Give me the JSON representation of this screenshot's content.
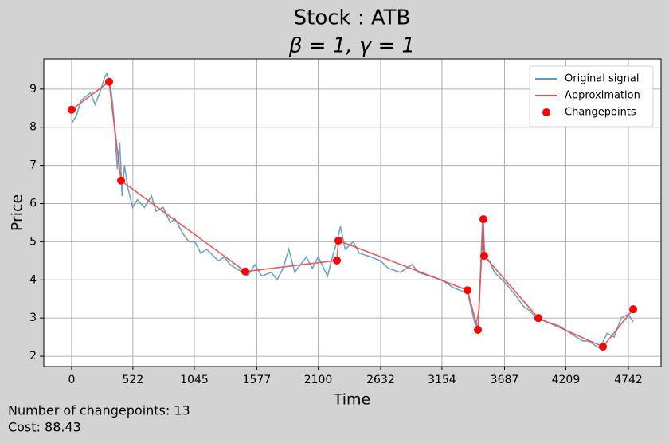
{
  "chart_data": {
    "type": "line",
    "title": "Stock : ATB",
    "subtitle": "β = 1, γ = 1",
    "xlabel": "Time",
    "ylabel": "Price",
    "annotations": [
      "Number of changepoints: 13",
      "Cost: 88.43"
    ],
    "xlim": [
      -237,
      5020
    ],
    "ylim": [
      1.73,
      9.79
    ],
    "xticks": [
      0,
      522,
      1045,
      1577,
      2100,
      2632,
      3154,
      3687,
      4209,
      4742
    ],
    "yticks": [
      2,
      3,
      4,
      5,
      6,
      7,
      8,
      9
    ],
    "grid": true,
    "legend": "upper right",
    "series": [
      {
        "name": "Original signal",
        "kind": "line",
        "color": "#5b9bc8",
        "x": [
          0,
          40,
          80,
          120,
          160,
          200,
          240,
          280,
          300,
          330,
          350,
          370,
          390,
          410,
          430,
          450,
          480,
          520,
          560,
          620,
          680,
          720,
          780,
          840,
          880,
          950,
          1000,
          1050,
          1100,
          1150,
          1250,
          1300,
          1350,
          1400,
          1460,
          1500,
          1560,
          1620,
          1700,
          1750,
          1800,
          1850,
          1900,
          1950,
          2000,
          2050,
          2100,
          2180,
          2230,
          2260,
          2290,
          2330,
          2400,
          2450,
          2550,
          2630,
          2700,
          2800,
          2900,
          2950,
          3050,
          3150,
          3250,
          3330,
          3370,
          3400,
          3440,
          3470,
          3500,
          3520,
          3560,
          3600,
          3700,
          3780,
          3850,
          3900,
          3960,
          4050,
          4150,
          4250,
          4350,
          4400,
          4450,
          4500,
          4560,
          4620,
          4680,
          4740,
          4783
        ],
        "values": [
          8.1,
          8.3,
          8.7,
          8.8,
          8.9,
          8.6,
          8.9,
          9.3,
          9.4,
          9.1,
          8.6,
          7.8,
          6.9,
          7.6,
          6.2,
          7.0,
          6.4,
          5.9,
          6.1,
          5.9,
          6.2,
          5.8,
          5.9,
          5.5,
          5.6,
          5.2,
          5.0,
          5.0,
          4.7,
          4.8,
          4.5,
          4.6,
          4.4,
          4.3,
          4.2,
          4.1,
          4.4,
          4.1,
          4.2,
          4.0,
          4.3,
          4.8,
          4.2,
          4.4,
          4.6,
          4.3,
          4.6,
          4.1,
          4.7,
          5.0,
          5.4,
          4.8,
          5.0,
          4.7,
          4.6,
          4.5,
          4.3,
          4.2,
          4.4,
          4.2,
          4.1,
          4.0,
          3.8,
          3.7,
          3.7,
          3.3,
          2.8,
          3.2,
          5.6,
          4.6,
          4.5,
          4.2,
          3.9,
          3.6,
          3.3,
          3.2,
          3.0,
          2.9,
          2.8,
          2.6,
          2.4,
          2.4,
          2.3,
          2.2,
          2.6,
          2.5,
          3.0,
          3.1,
          2.9
        ]
      },
      {
        "name": "Approximation",
        "kind": "line",
        "color": "#f04848",
        "x": [
          0,
          319,
          421,
          1479,
          2259,
          2273,
          3372,
          3460,
          3507,
          3514,
          3975,
          4525,
          4783
        ],
        "values": [
          8.46,
          9.19,
          6.6,
          4.22,
          4.51,
          5.03,
          3.73,
          2.69,
          5.59,
          4.63,
          3.0,
          2.25,
          3.23
        ]
      },
      {
        "name": "Changepoints",
        "kind": "scatter",
        "color": "#ff0000",
        "x": [
          0,
          319,
          421,
          1479,
          2259,
          2273,
          3372,
          3460,
          3507,
          3514,
          3975,
          4525,
          4783
        ],
        "values": [
          8.46,
          9.19,
          6.6,
          4.22,
          4.51,
          5.03,
          3.73,
          2.69,
          5.59,
          4.63,
          3.0,
          2.25,
          3.23
        ]
      }
    ]
  }
}
